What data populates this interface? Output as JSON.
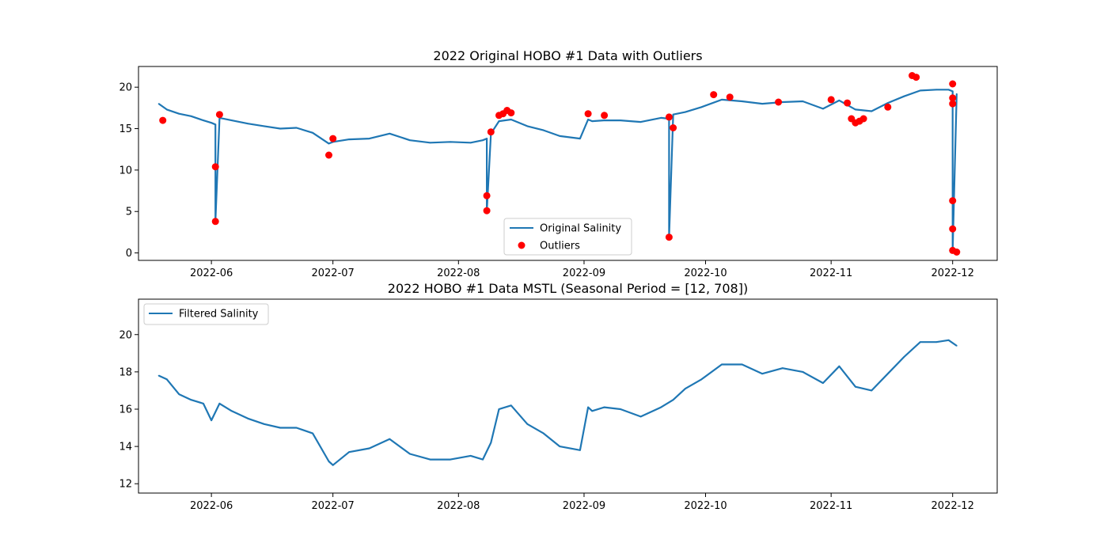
{
  "chart_data": [
    {
      "type": "line",
      "title": "2022 Original HOBO #1 Data with Outliers",
      "xlabel": "",
      "ylabel": "",
      "x_axis": "date",
      "xlim": [
        "2022-05-14",
        "2022-12-12"
      ],
      "ylim": [
        -0.9,
        22.5
      ],
      "x_ticks": [
        "2022-06",
        "2022-07",
        "2022-08",
        "2022-09",
        "2022-10",
        "2022-11",
        "2022-12"
      ],
      "y_ticks": [
        0,
        5,
        10,
        15,
        20
      ],
      "grid": false,
      "legend_position": "lower-center",
      "series": [
        {
          "name": "Original Salinity",
          "kind": "line",
          "color": "#1f77b4",
          "x": [
            "2022-05-19",
            "2022-05-21",
            "2022-05-24",
            "2022-05-27",
            "2022-05-30",
            "2022-06-01",
            "2022-06-02",
            "2022-06-02",
            "2022-06-03",
            "2022-06-06",
            "2022-06-10",
            "2022-06-14",
            "2022-06-18",
            "2022-06-22",
            "2022-06-26",
            "2022-06-30",
            "2022-07-01",
            "2022-07-05",
            "2022-07-10",
            "2022-07-15",
            "2022-07-20",
            "2022-07-25",
            "2022-07-30",
            "2022-08-04",
            "2022-08-07",
            "2022-08-08",
            "2022-08-08",
            "2022-08-09",
            "2022-08-11",
            "2022-08-14",
            "2022-08-18",
            "2022-08-22",
            "2022-08-26",
            "2022-08-31",
            "2022-09-02",
            "2022-09-03",
            "2022-09-06",
            "2022-09-10",
            "2022-09-15",
            "2022-09-20",
            "2022-09-22",
            "2022-09-22",
            "2022-09-23",
            "2022-09-26",
            "2022-09-30",
            "2022-10-05",
            "2022-10-10",
            "2022-10-15",
            "2022-10-20",
            "2022-10-25",
            "2022-10-30",
            "2022-11-03",
            "2022-11-07",
            "2022-11-11",
            "2022-11-15",
            "2022-11-19",
            "2022-11-23",
            "2022-11-27",
            "2022-11-30",
            "2022-12-01",
            "2022-12-01",
            "2022-12-02"
          ],
          "y": [
            18.0,
            17.3,
            16.8,
            16.5,
            16.0,
            15.7,
            15.5,
            3.8,
            16.3,
            16.0,
            15.6,
            15.3,
            15.0,
            15.1,
            14.5,
            13.2,
            13.4,
            13.7,
            13.8,
            14.4,
            13.6,
            13.3,
            13.4,
            13.3,
            13.6,
            13.8,
            5.0,
            14.4,
            15.9,
            16.1,
            15.3,
            14.8,
            14.1,
            13.8,
            16.1,
            15.9,
            16.0,
            16.0,
            15.8,
            16.3,
            16.2,
            1.9,
            16.7,
            17.0,
            17.6,
            18.5,
            18.3,
            18.0,
            18.2,
            18.3,
            17.4,
            18.4,
            17.3,
            17.1,
            18.1,
            18.9,
            19.6,
            19.7,
            19.7,
            19.5,
            0.2,
            19.2
          ]
        },
        {
          "name": "Outliers",
          "kind": "scatter",
          "color": "#ff0000",
          "x": [
            "2022-05-20",
            "2022-06-02",
            "2022-06-02",
            "2022-06-03",
            "2022-06-30",
            "2022-07-01",
            "2022-08-08",
            "2022-08-08",
            "2022-08-09",
            "2022-08-11",
            "2022-08-12",
            "2022-08-13",
            "2022-08-14",
            "2022-09-02",
            "2022-09-06",
            "2022-09-22",
            "2022-09-22",
            "2022-09-23",
            "2022-10-03",
            "2022-10-07",
            "2022-10-19",
            "2022-11-01",
            "2022-11-05",
            "2022-11-06",
            "2022-11-07",
            "2022-11-08",
            "2022-11-09",
            "2022-11-15",
            "2022-11-21",
            "2022-11-22",
            "2022-12-01",
            "2022-12-01",
            "2022-12-01",
            "2022-12-01",
            "2022-12-01",
            "2022-12-01",
            "2022-12-02"
          ],
          "y": [
            16.0,
            10.4,
            3.8,
            16.7,
            11.8,
            13.8,
            6.9,
            5.1,
            14.6,
            16.6,
            16.8,
            17.2,
            16.9,
            16.8,
            16.6,
            16.4,
            1.9,
            15.1,
            19.1,
            18.8,
            18.2,
            18.5,
            18.1,
            16.2,
            15.7,
            15.9,
            16.2,
            17.6,
            21.4,
            21.2,
            20.4,
            18.7,
            18.0,
            6.3,
            2.9,
            0.3,
            0.1
          ]
        }
      ]
    },
    {
      "type": "line",
      "title": "2022 HOBO #1 Data MSTL (Seasonal Period = [12, 708])",
      "xlabel": "",
      "ylabel": "",
      "x_axis": "date",
      "xlim": [
        "2022-05-14",
        "2022-12-12"
      ],
      "ylim": [
        11.5,
        21.9
      ],
      "x_ticks": [
        "2022-06",
        "2022-07",
        "2022-08",
        "2022-09",
        "2022-10",
        "2022-11",
        "2022-12"
      ],
      "y_ticks": [
        12,
        14,
        16,
        18,
        20
      ],
      "grid": false,
      "legend_position": "top-left",
      "series": [
        {
          "name": "Filtered Salinity",
          "kind": "line",
          "color": "#1f77b4",
          "x": [
            "2022-05-19",
            "2022-05-21",
            "2022-05-24",
            "2022-05-27",
            "2022-05-30",
            "2022-06-01",
            "2022-06-03",
            "2022-06-06",
            "2022-06-10",
            "2022-06-14",
            "2022-06-18",
            "2022-06-22",
            "2022-06-26",
            "2022-06-30",
            "2022-07-01",
            "2022-07-05",
            "2022-07-10",
            "2022-07-15",
            "2022-07-20",
            "2022-07-25",
            "2022-07-30",
            "2022-08-04",
            "2022-08-07",
            "2022-08-09",
            "2022-08-11",
            "2022-08-14",
            "2022-08-18",
            "2022-08-22",
            "2022-08-26",
            "2022-08-31",
            "2022-09-02",
            "2022-09-03",
            "2022-09-06",
            "2022-09-10",
            "2022-09-15",
            "2022-09-20",
            "2022-09-23",
            "2022-09-26",
            "2022-09-30",
            "2022-10-05",
            "2022-10-10",
            "2022-10-15",
            "2022-10-20",
            "2022-10-25",
            "2022-10-30",
            "2022-11-03",
            "2022-11-07",
            "2022-11-11",
            "2022-11-15",
            "2022-11-19",
            "2022-11-23",
            "2022-11-27",
            "2022-11-30",
            "2022-12-02"
          ],
          "y": [
            17.8,
            17.6,
            16.8,
            16.5,
            16.3,
            15.4,
            16.3,
            15.9,
            15.5,
            15.2,
            15.0,
            15.0,
            14.7,
            13.2,
            13.0,
            13.7,
            13.9,
            14.4,
            13.6,
            13.3,
            13.3,
            13.5,
            13.3,
            14.2,
            16.0,
            16.2,
            15.2,
            14.7,
            14.0,
            13.8,
            16.1,
            15.9,
            16.1,
            16.0,
            15.6,
            16.1,
            16.5,
            17.1,
            17.6,
            18.4,
            18.4,
            17.9,
            18.2,
            18.0,
            17.4,
            18.3,
            17.2,
            17.0,
            17.9,
            18.8,
            19.6,
            19.6,
            19.7,
            19.4
          ]
        }
      ]
    }
  ]
}
